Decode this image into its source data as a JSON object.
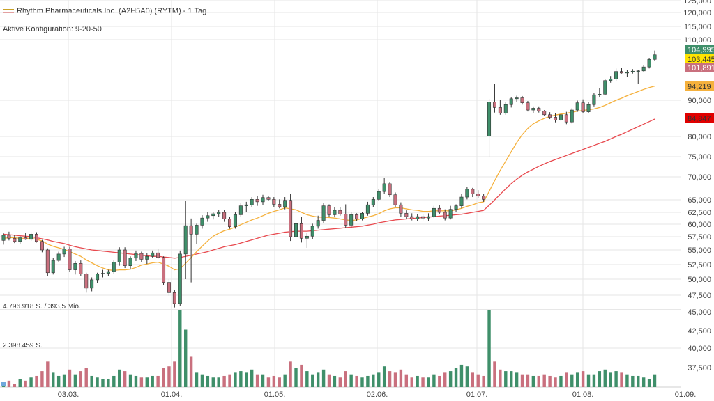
{
  "header": {
    "title": "Rhythm Pharmaceuticals Inc. (A2H5A0) (RYTM) - 1 Tag",
    "config_label": "Aktive Konfiguration: 9-20-50"
  },
  "volume_labels": {
    "top": "4.796.918 S. / 393,5 Mio.",
    "mid": "2.398.459 S."
  },
  "colors": {
    "up": "#3f8f6a",
    "down": "#c9707e",
    "ma_fast": "#f5b13d",
    "ma_slow": "#e8484d",
    "grid": "#e6e6e6"
  },
  "chart_data": {
    "type": "candlestick",
    "price_axis_ticks": [
      "125,000",
      "120,000",
      "115,000",
      "110,000",
      "90,000",
      "80,000",
      "75,000",
      "70,000",
      "65,000",
      "62,500",
      "60,000",
      "57,500",
      "55,000",
      "52,500",
      "50,000",
      "47,500"
    ],
    "volume_axis_ticks": [
      "45,000",
      "42,500",
      "40,000",
      "37,500"
    ],
    "x_ticks": [
      "03.03.",
      "01.04.",
      "01.05.",
      "02.06.",
      "01.07.",
      "01.08.",
      "01.09."
    ],
    "price_badges": [
      {
        "label": "104,995",
        "value": 105.0,
        "color": "#3f8f6a",
        "text_color": "#ffffff"
      },
      {
        "label": "103,445",
        "value": 103.4,
        "color": "#ffe400",
        "text_color": "#333333"
      },
      {
        "label": "101,891",
        "value": 101.9,
        "color": "#c9707e",
        "text_color": "#ffffff"
      },
      {
        "label": "94,219",
        "value": 94.2,
        "color": "#f5b13d",
        "text_color": "#333333"
      },
      {
        "label": "84,847",
        "value": 84.8,
        "color": "#e00000",
        "text_color": "#333333"
      }
    ],
    "candles": [
      [
        56.8,
        58.2,
        56.0,
        57.8
      ],
      [
        57.8,
        58.5,
        56.8,
        57.2
      ],
      [
        57.2,
        57.9,
        56.3,
        56.6
      ],
      [
        56.6,
        57.6,
        56.1,
        57.3
      ],
      [
        57.3,
        58.3,
        56.9,
        57.0
      ],
      [
        57.0,
        58.4,
        56.7,
        58.0
      ],
      [
        58.0,
        58.4,
        56.4,
        56.6
      ],
      [
        56.6,
        56.9,
        54.6,
        55.0
      ],
      [
        55.0,
        55.3,
        50.5,
        51.1
      ],
      [
        51.1,
        53.6,
        50.8,
        53.2
      ],
      [
        53.2,
        54.7,
        52.9,
        54.3
      ],
      [
        54.3,
        55.6,
        53.8,
        55.2
      ],
      [
        55.2,
        55.6,
        51.2,
        51.6
      ],
      [
        51.6,
        53.1,
        50.8,
        52.7
      ],
      [
        52.7,
        53.2,
        50.6,
        50.9
      ],
      [
        50.9,
        51.1,
        47.9,
        48.6
      ],
      [
        48.6,
        50.3,
        48.1,
        49.9
      ],
      [
        49.9,
        51.1,
        49.4,
        50.9
      ],
      [
        50.9,
        51.6,
        50.3,
        51.0
      ],
      [
        51.0,
        51.6,
        50.5,
        51.3
      ],
      [
        51.3,
        53.2,
        50.9,
        52.9
      ],
      [
        52.9,
        55.5,
        52.3,
        55.0
      ],
      [
        55.0,
        55.5,
        51.9,
        52.3
      ],
      [
        52.3,
        53.9,
        51.8,
        53.6
      ],
      [
        53.6,
        54.9,
        53.1,
        54.4
      ],
      [
        54.4,
        54.7,
        52.9,
        53.4
      ],
      [
        53.4,
        54.5,
        52.6,
        53.9
      ],
      [
        53.9,
        54.9,
        53.6,
        54.5
      ],
      [
        54.5,
        55.2,
        53.5,
        53.7
      ],
      [
        53.7,
        53.9,
        49.1,
        49.5
      ],
      [
        49.5,
        50.0,
        47.4,
        47.9
      ],
      [
        47.9,
        48.3,
        45.3,
        46.0
      ],
      [
        46.0,
        54.9,
        45.5,
        54.3
      ],
      [
        54.3,
        64.8,
        50.0,
        59.7
      ],
      [
        59.7,
        61.2,
        49.5,
        58.0
      ],
      [
        58.0,
        60.1,
        56.1,
        59.8
      ],
      [
        59.8,
        61.9,
        59.1,
        61.3
      ],
      [
        61.3,
        62.6,
        60.5,
        61.8
      ],
      [
        61.8,
        62.6,
        61.0,
        62.2
      ],
      [
        62.2,
        63.0,
        61.6,
        62.5
      ],
      [
        62.5,
        63.0,
        60.5,
        61.1
      ],
      [
        61.1,
        61.6,
        59.1,
        59.5
      ],
      [
        59.5,
        62.6,
        59.1,
        62.0
      ],
      [
        62.0,
        64.4,
        61.6,
        63.8
      ],
      [
        63.8,
        64.6,
        62.6,
        64.0
      ],
      [
        64.0,
        65.6,
        63.6,
        65.1
      ],
      [
        65.1,
        65.9,
        63.8,
        64.6
      ],
      [
        64.6,
        66.1,
        64.0,
        65.5
      ],
      [
        65.5,
        65.8,
        64.8,
        65.1
      ],
      [
        65.1,
        65.6,
        63.6,
        64.1
      ],
      [
        64.1,
        65.1,
        63.3,
        63.6
      ],
      [
        63.6,
        65.6,
        63.1,
        64.9
      ],
      [
        64.9,
        66.3,
        56.7,
        57.5
      ],
      [
        57.5,
        60.8,
        57.0,
        60.1
      ],
      [
        60.1,
        61.6,
        56.4,
        57.2
      ],
      [
        57.2,
        58.3,
        55.4,
        57.6
      ],
      [
        57.6,
        60.1,
        57.1,
        59.6
      ],
      [
        59.6,
        61.8,
        59.1,
        60.8
      ],
      [
        60.8,
        64.4,
        60.3,
        63.8
      ],
      [
        63.8,
        64.1,
        61.6,
        62.0
      ],
      [
        62.0,
        63.6,
        61.6,
        62.9
      ],
      [
        62.9,
        63.6,
        61.8,
        62.1
      ],
      [
        62.1,
        64.1,
        59.3,
        59.8
      ],
      [
        59.8,
        62.6,
        59.3,
        62.0
      ],
      [
        62.0,
        62.3,
        60.6,
        61.1
      ],
      [
        61.1,
        62.6,
        60.8,
        62.3
      ],
      [
        62.3,
        64.6,
        61.8,
        64.0
      ],
      [
        64.0,
        65.6,
        63.6,
        65.1
      ],
      [
        65.1,
        67.3,
        64.8,
        66.8
      ],
      [
        66.8,
        69.8,
        66.3,
        68.5
      ],
      [
        68.5,
        68.8,
        65.6,
        66.1
      ],
      [
        66.1,
        66.6,
        63.6,
        64.0
      ],
      [
        64.0,
        64.5,
        61.6,
        62.3
      ],
      [
        62.3,
        62.9,
        61.1,
        61.6
      ],
      [
        61.6,
        62.3,
        60.8,
        61.1
      ],
      [
        61.1,
        62.1,
        60.6,
        61.6
      ],
      [
        61.6,
        62.1,
        60.8,
        61.3
      ],
      [
        61.3,
        62.3,
        60.6,
        61.6
      ],
      [
        61.6,
        63.8,
        61.3,
        63.3
      ],
      [
        63.3,
        64.0,
        62.1,
        62.5
      ],
      [
        62.5,
        63.1,
        60.8,
        61.3
      ],
      [
        61.3,
        63.8,
        61.0,
        63.1
      ],
      [
        63.1,
        64.1,
        62.6,
        63.8
      ],
      [
        63.8,
        66.3,
        63.3,
        65.6
      ],
      [
        65.6,
        67.8,
        65.1,
        67.3
      ],
      [
        67.3,
        67.6,
        65.6,
        66.3
      ],
      [
        66.3,
        67.1,
        65.3,
        65.8
      ],
      [
        65.8,
        66.3,
        64.6,
        65.1
      ],
      [
        80.1,
        90.5,
        75.0,
        89.5
      ],
      [
        89.5,
        95.5,
        86.6,
        88.0
      ],
      [
        88.0,
        90.0,
        86.0,
        86.4
      ],
      [
        86.4,
        89.5,
        86.0,
        88.8
      ],
      [
        88.8,
        91.0,
        88.0,
        90.5
      ],
      [
        90.5,
        91.5,
        89.5,
        90.8
      ],
      [
        90.8,
        91.4,
        88.8,
        89.3
      ],
      [
        89.3,
        89.8,
        86.9,
        87.3
      ],
      [
        87.3,
        88.3,
        86.4,
        87.8
      ],
      [
        87.8,
        88.3,
        86.6,
        87.0
      ],
      [
        87.0,
        87.3,
        85.6,
        86.0
      ],
      [
        86.0,
        86.7,
        84.8,
        85.3
      ],
      [
        85.3,
        86.4,
        83.9,
        84.5
      ],
      [
        84.5,
        86.4,
        84.3,
        86.0
      ],
      [
        86.0,
        86.8,
        83.4,
        84.0
      ],
      [
        84.0,
        87.8,
        83.6,
        87.3
      ],
      [
        87.3,
        89.9,
        86.8,
        89.3
      ],
      [
        89.3,
        90.3,
        86.4,
        86.8
      ],
      [
        86.8,
        89.5,
        86.4,
        88.8
      ],
      [
        88.8,
        92.5,
        88.3,
        91.8
      ],
      [
        91.8,
        94.0,
        91.0,
        92.0
      ],
      [
        92.0,
        97.0,
        91.6,
        96.5
      ],
      [
        96.5,
        98.0,
        95.8,
        97.0
      ],
      [
        97.0,
        100.5,
        96.4,
        99.5
      ],
      [
        99.5,
        100.8,
        98.8,
        99.0
      ],
      [
        99.0,
        100.0,
        97.8,
        99.3
      ],
      [
        99.3,
        100.3,
        98.8,
        99.6
      ],
      [
        99.6,
        100.0,
        95.5,
        99.7
      ],
      [
        99.7,
        101.6,
        99.3,
        101.0
      ],
      [
        101.0,
        104.0,
        100.5,
        103.5
      ],
      [
        103.5,
        106.4,
        103.0,
        105.0
      ]
    ],
    "ma_fast": [
      57.2,
      57.3,
      57.3,
      57.2,
      57.2,
      57.2,
      57.0,
      56.7,
      56.1,
      55.7,
      55.4,
      55.1,
      54.7,
      54.3,
      53.9,
      53.3,
      52.8,
      52.3,
      51.9,
      51.6,
      51.5,
      51.6,
      51.6,
      51.7,
      52.0,
      52.4,
      52.6,
      52.8,
      52.9,
      52.6,
      52.2,
      51.6,
      51.8,
      52.7,
      53.7,
      54.7,
      55.7,
      56.7,
      57.6,
      58.2,
      58.7,
      59.0,
      59.4,
      59.9,
      60.4,
      60.9,
      61.3,
      61.8,
      62.3,
      62.7,
      63.0,
      63.4,
      63.2,
      63.0,
      62.5,
      62.0,
      61.7,
      61.5,
      61.5,
      61.4,
      61.3,
      61.1,
      60.9,
      60.8,
      60.9,
      61.2,
      61.5,
      61.8,
      62.2,
      62.8,
      63.2,
      63.4,
      63.4,
      63.2,
      63.0,
      62.9,
      62.7,
      62.7,
      62.8,
      62.8,
      62.8,
      62.8,
      63.0,
      63.3,
      63.7,
      64.0,
      64.4,
      64.6,
      66.8,
      69.2,
      71.6,
      73.9,
      76.2,
      78.5,
      80.5,
      82.2,
      83.5,
      84.3,
      85.0,
      85.5,
      85.9,
      86.2,
      86.4,
      86.7,
      87.0,
      87.2,
      87.4,
      87.6,
      88.0,
      88.6,
      89.3,
      90.0,
      90.7,
      91.5,
      92.2,
      92.9,
      93.6,
      94.2,
      94.7
    ],
    "ma_slow": [
      58.0,
      57.9,
      57.8,
      57.7,
      57.6,
      57.5,
      57.3,
      57.1,
      56.9,
      56.6,
      56.4,
      56.2,
      55.9,
      55.6,
      55.4,
      55.2,
      55.0,
      54.9,
      54.8,
      54.7,
      54.6,
      54.5,
      54.4,
      54.3,
      54.2,
      54.1,
      54.0,
      53.9,
      53.9,
      53.8,
      53.7,
      53.6,
      53.7,
      53.9,
      54.1,
      54.3,
      54.5,
      54.7,
      55.0,
      55.3,
      55.6,
      55.8,
      56.0,
      56.3,
      56.6,
      56.9,
      57.2,
      57.5,
      57.8,
      58.0,
      58.2,
      58.4,
      58.5,
      58.6,
      58.6,
      58.6,
      58.7,
      58.8,
      58.9,
      59.0,
      59.1,
      59.2,
      59.3,
      59.4,
      59.5,
      59.6,
      59.8,
      60.0,
      60.3,
      60.5,
      60.7,
      60.9,
      61.0,
      61.1,
      61.2,
      61.3,
      61.4,
      61.5,
      61.6,
      61.7,
      61.8,
      61.9,
      62.0,
      62.1,
      62.3,
      62.5,
      62.7,
      62.9,
      63.9,
      65.0,
      66.2,
      67.4,
      68.5,
      69.5,
      70.4,
      71.2,
      71.9,
      72.6,
      73.2,
      73.8,
      74.3,
      74.8,
      75.3,
      75.8,
      76.3,
      76.8,
      77.3,
      77.8,
      78.3,
      78.8,
      79.4,
      80.0,
      80.6,
      81.3,
      82.0,
      82.7,
      83.4,
      84.1,
      84.8
    ],
    "volumes": [
      0.3,
      0.4,
      0.2,
      0.5,
      0.4,
      0.6,
      0.7,
      1.0,
      1.6,
      0.9,
      0.7,
      0.8,
      1.1,
      0.8,
      1.0,
      1.2,
      0.7,
      0.6,
      0.5,
      0.5,
      0.7,
      1.1,
      1.0,
      0.8,
      0.7,
      0.6,
      0.6,
      0.7,
      0.7,
      1.2,
      1.3,
      1.6,
      5.9,
      3.6,
      1.9,
      0.9,
      0.8,
      0.7,
      0.6,
      0.6,
      0.7,
      0.8,
      0.9,
      1.0,
      0.9,
      1.1,
      0.8,
      0.8,
      0.6,
      0.7,
      0.6,
      0.8,
      1.6,
      1.2,
      1.4,
      1.0,
      0.8,
      0.9,
      1.1,
      0.8,
      0.7,
      0.6,
      1.0,
      0.8,
      0.7,
      0.6,
      0.7,
      0.8,
      0.9,
      1.3,
      1.0,
      0.9,
      1.1,
      0.8,
      0.6,
      0.7,
      0.6,
      0.6,
      0.8,
      0.7,
      0.9,
      1.0,
      1.2,
      1.4,
      1.3,
      0.9,
      0.8,
      0.7,
      7.5,
      1.6,
      1.1,
      1.0,
      1.0,
      0.9,
      0.8,
      0.8,
      0.7,
      0.7,
      0.8,
      0.7,
      0.6,
      0.7,
      0.9,
      0.8,
      0.9,
      1.0,
      0.8,
      0.8,
      1.0,
      1.1,
      0.9,
      1.0,
      0.9,
      0.8,
      0.7,
      0.7,
      0.6,
      0.5,
      0.8,
      0.9,
      0.9
    ],
    "volume_max": 4.8
  }
}
